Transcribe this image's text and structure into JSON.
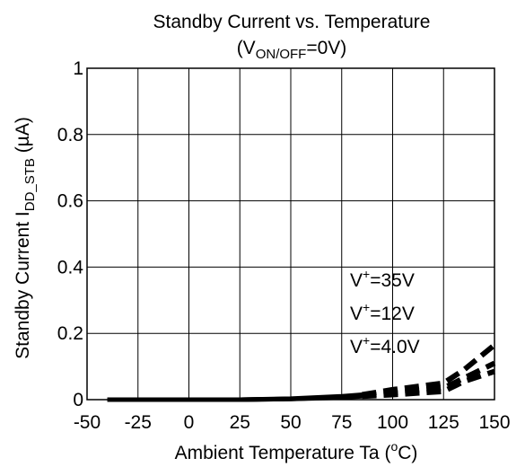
{
  "chart_data": {
    "type": "line",
    "title": "Standby Current vs. Temperature",
    "subtitle": {
      "prefix": "(V",
      "subscript": "ON/OFF",
      "suffix": "=0V)"
    },
    "xlabel": {
      "main": "Ambient Temperature  Ta  (",
      "superscript": "o",
      "suffix": "C)"
    },
    "ylabel": {
      "main": "Standby Current  I",
      "subscript": "DD_STB",
      "suffix": "  (µA)"
    },
    "xlim": [
      -50,
      150
    ],
    "ylim": [
      0,
      1
    ],
    "x_ticks": [
      "-50",
      "-25",
      "0",
      "25",
      "50",
      "75",
      "100",
      "125",
      "150"
    ],
    "x_tick_values": [
      -50,
      -25,
      0,
      25,
      50,
      75,
      100,
      125,
      150
    ],
    "y_ticks": [
      "0",
      "0.2",
      "0.4",
      "0.6",
      "0.8",
      "1"
    ],
    "y_tick_values": [
      0,
      0.2,
      0.4,
      0.6,
      0.8,
      1
    ],
    "grid": true,
    "legend_position": "right",
    "series": [
      {
        "name": "V⁺=35V",
        "label": {
          "prefix": "V",
          "superscript": "+",
          "suffix": "=35V"
        },
        "x": [
          -40,
          -25,
          0,
          25,
          50,
          75,
          85,
          100,
          125,
          135,
          150
        ],
        "y": [
          0.0,
          0.0,
          0.0,
          0.0,
          0.003,
          0.01,
          0.015,
          0.03,
          0.05,
          0.09,
          0.165
        ]
      },
      {
        "name": "V⁺=12V",
        "label": {
          "prefix": "V",
          "superscript": "+",
          "suffix": "=12V"
        },
        "x": [
          -40,
          -25,
          0,
          25,
          50,
          75,
          85,
          100,
          125,
          135,
          150
        ],
        "y": [
          0.0,
          0.0,
          0.0,
          0.0,
          0.002,
          0.008,
          0.012,
          0.02,
          0.035,
          0.065,
          0.11
        ]
      },
      {
        "name": "V⁺=4.0V",
        "label": {
          "prefix": "V",
          "superscript": "+",
          "suffix": "=4.0V"
        },
        "x": [
          -40,
          -25,
          0,
          25,
          50,
          75,
          85,
          100,
          125,
          135,
          150
        ],
        "y": [
          0.0,
          0.0,
          0.0,
          0.0,
          0.002,
          0.006,
          0.01,
          0.015,
          0.025,
          0.055,
          0.085
        ]
      }
    ]
  }
}
